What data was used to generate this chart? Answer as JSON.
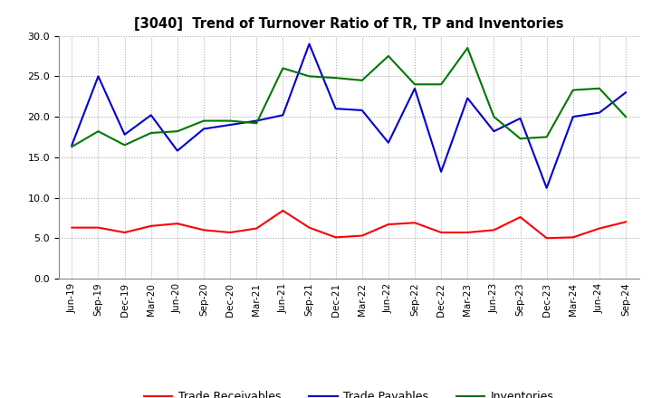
{
  "title": "[3040]  Trend of Turnover Ratio of TR, TP and Inventories",
  "x_labels": [
    "Jun-19",
    "Sep-19",
    "Dec-19",
    "Mar-20",
    "Jun-20",
    "Sep-20",
    "Dec-20",
    "Mar-21",
    "Jun-21",
    "Sep-21",
    "Dec-21",
    "Mar-22",
    "Jun-22",
    "Sep-22",
    "Dec-22",
    "Mar-23",
    "Jun-23",
    "Sep-23",
    "Dec-23",
    "Mar-24",
    "Jun-24",
    "Sep-24"
  ],
  "trade_receivables": [
    6.3,
    6.3,
    5.7,
    6.5,
    6.8,
    6.0,
    5.7,
    6.2,
    8.4,
    6.3,
    5.1,
    5.3,
    6.7,
    6.9,
    5.7,
    5.7,
    6.0,
    7.6,
    5.0,
    5.1,
    6.2,
    7.0
  ],
  "trade_payables": [
    16.5,
    25.0,
    17.8,
    20.2,
    15.8,
    18.5,
    19.0,
    19.5,
    20.2,
    29.0,
    21.0,
    20.8,
    16.8,
    23.5,
    13.2,
    22.3,
    18.2,
    19.8,
    11.2,
    20.0,
    20.5,
    23.0
  ],
  "inventories": [
    16.3,
    18.2,
    16.5,
    18.0,
    18.2,
    19.5,
    19.5,
    19.2,
    26.0,
    25.0,
    24.8,
    24.5,
    27.5,
    24.0,
    24.0,
    28.5,
    20.0,
    17.3,
    17.5,
    23.3,
    23.5,
    20.0
  ],
  "ylim": [
    0,
    30
  ],
  "yticks": [
    0.0,
    5.0,
    10.0,
    15.0,
    20.0,
    25.0,
    30.0
  ],
  "line_colors": {
    "trade_receivables": "#ff0000",
    "trade_payables": "#0000cc",
    "inventories": "#007700"
  },
  "legend_labels": [
    "Trade Receivables",
    "Trade Payables",
    "Inventories"
  ],
  "background_color": "#ffffff",
  "grid_color": "#aaaaaa"
}
